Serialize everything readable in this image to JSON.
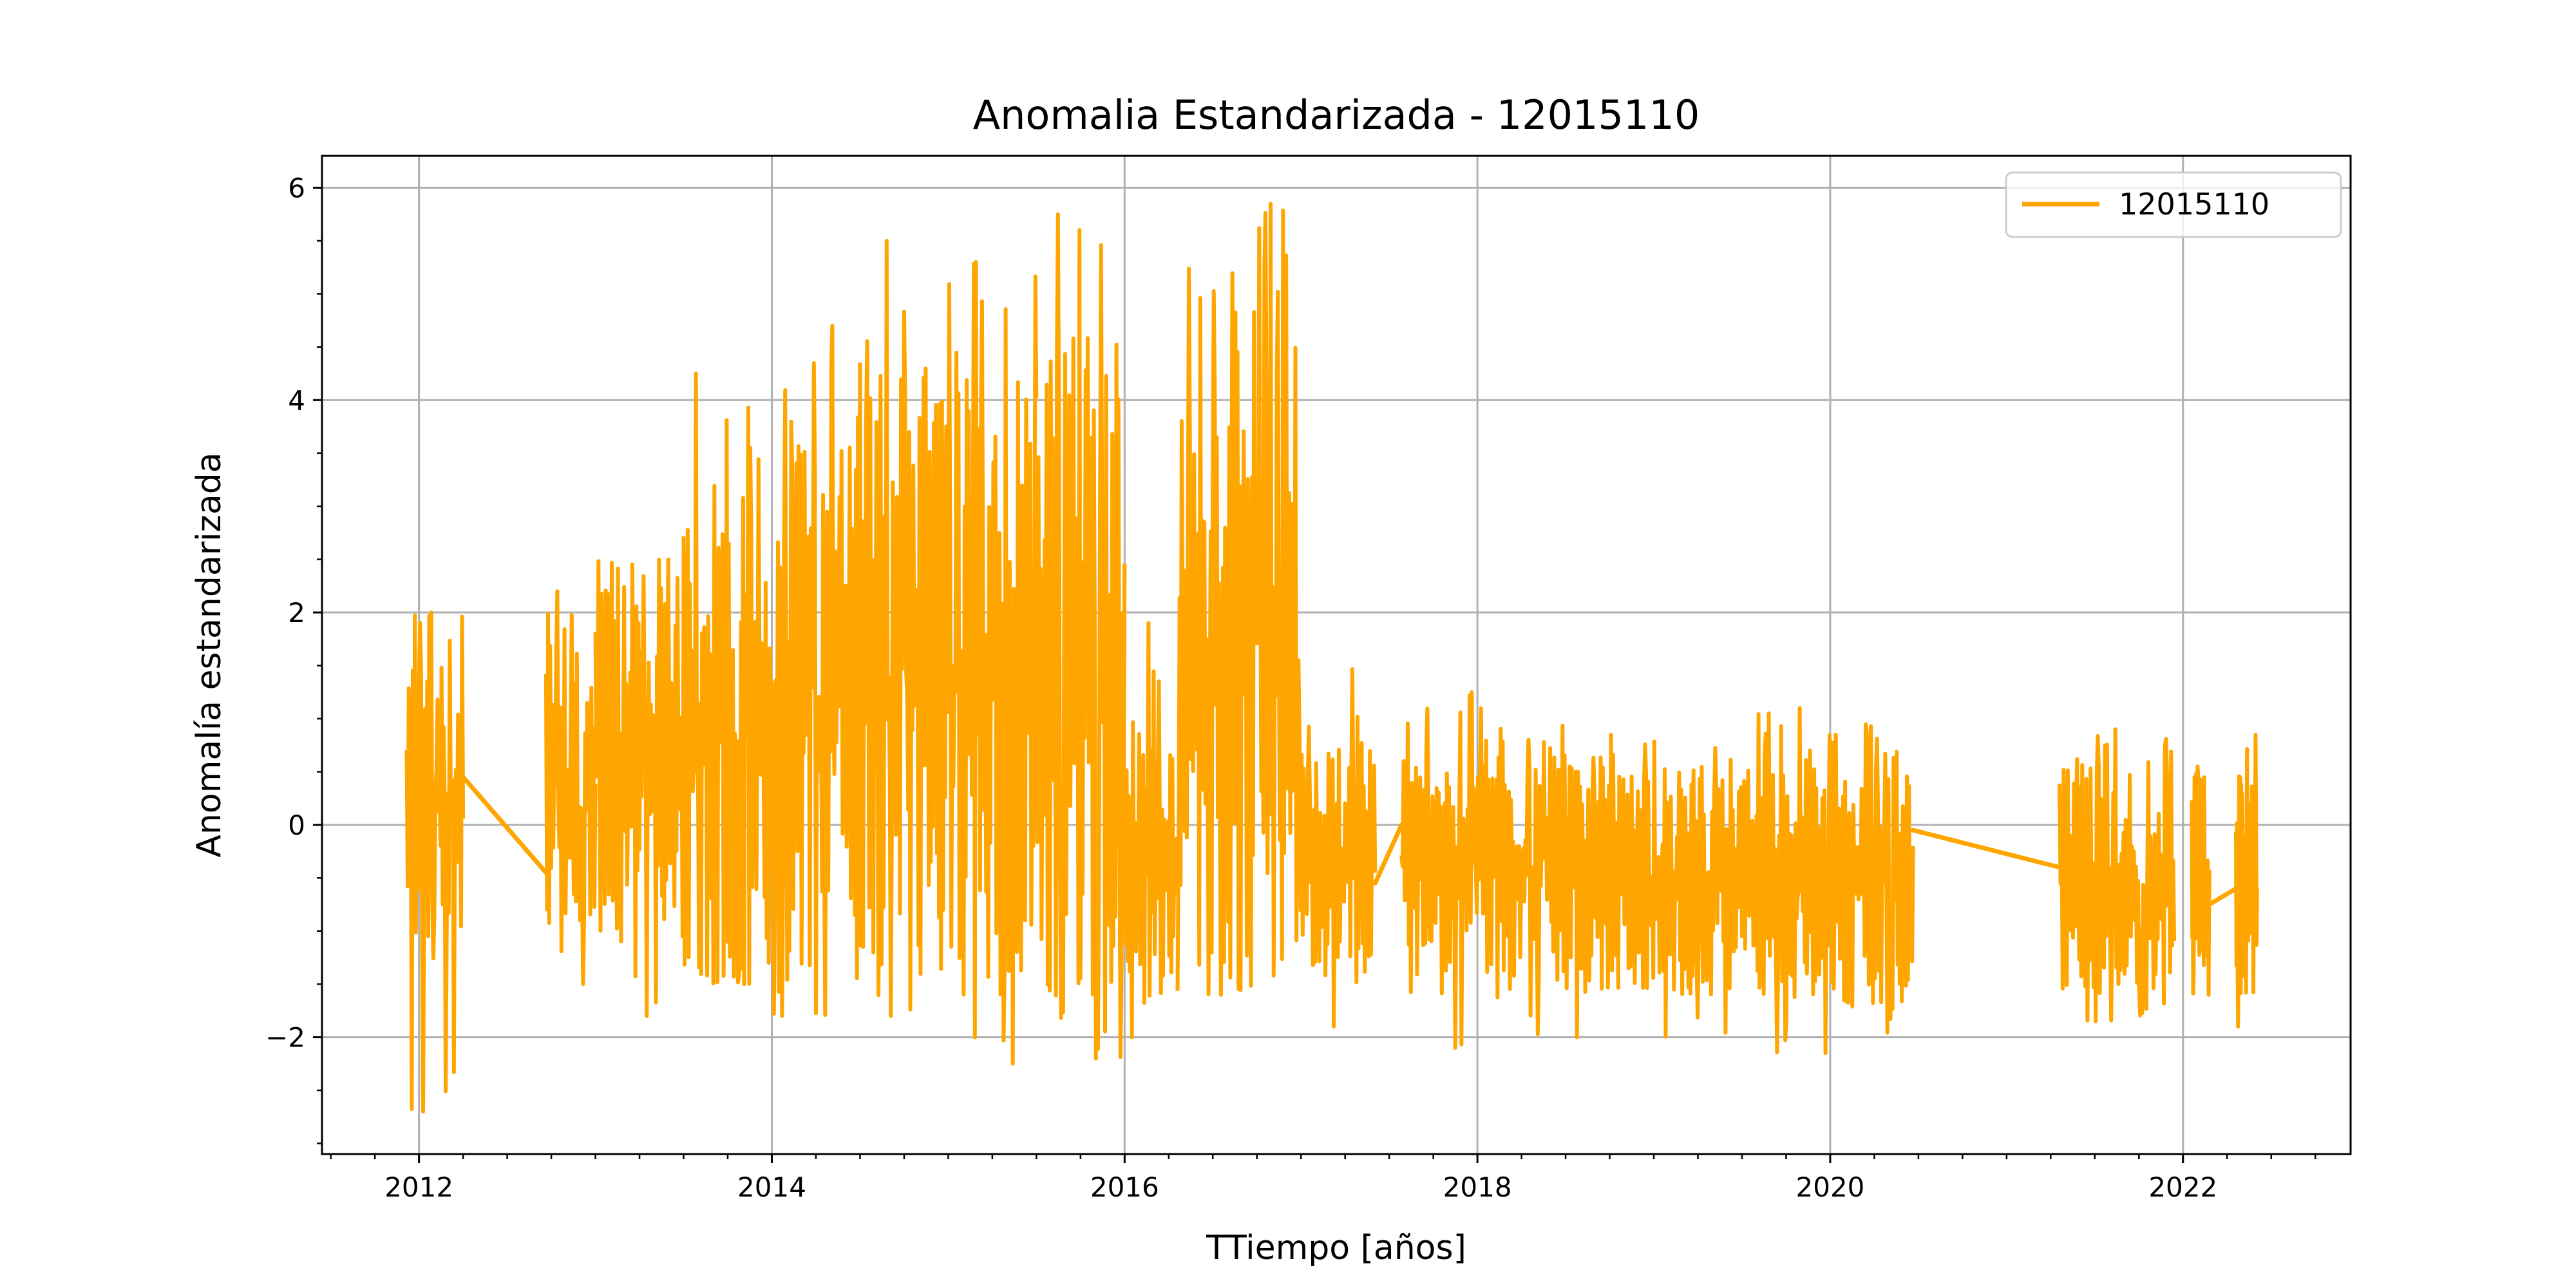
{
  "chart_data": {
    "type": "line",
    "title": "Anomalia Estandarizada - 12015110",
    "xlabel": "TTiempo [años]",
    "ylabel": "Anomalía estandarizada",
    "xlim": [
      2011.45,
      2022.95
    ],
    "ylim": [
      -3.1,
      6.3
    ],
    "x_ticks": [
      2012,
      2014,
      2016,
      2018,
      2020,
      2022
    ],
    "x_tick_labels": [
      "2012",
      "2014",
      "2016",
      "2018",
      "2020",
      "2022"
    ],
    "y_ticks": [
      -2,
      0,
      2,
      4,
      6
    ],
    "y_tick_labels": [
      "−2",
      "0",
      "2",
      "4",
      "6"
    ],
    "grid": true,
    "legend": {
      "position": "top-right",
      "entries": [
        "12015110"
      ]
    },
    "colors": {
      "series": "#ffa500",
      "grid": "#b0b0b0"
    },
    "series": [
      {
        "name": "12015110",
        "segments": [
          {
            "x_start": 2011.93,
            "x_end": 2012.25,
            "low": -1.1,
            "high": 1.9,
            "min": -2.7,
            "max": 2.0
          },
          {
            "x_start": 2012.72,
            "x_end": 2013.0,
            "low": -1.2,
            "high": 1.8,
            "min": -1.5,
            "max": 2.2
          },
          {
            "x_start": 2013.0,
            "x_end": 2013.5,
            "low": -1.3,
            "high": 2.3,
            "min": -1.8,
            "max": 2.5
          },
          {
            "x_start": 2013.5,
            "x_end": 2014.0,
            "low": -1.4,
            "high": 2.8,
            "min": -1.5,
            "max": 4.25
          },
          {
            "x_start": 2014.0,
            "x_end": 2014.5,
            "low": -1.5,
            "high": 3.6,
            "min": -1.8,
            "max": 4.7
          },
          {
            "x_start": 2014.5,
            "x_end": 2015.0,
            "low": -1.6,
            "high": 4.4,
            "min": -1.8,
            "max": 5.5
          },
          {
            "x_start": 2015.0,
            "x_end": 2015.5,
            "low": -1.7,
            "high": 4.5,
            "min": -2.25,
            "max": 5.3
          },
          {
            "x_start": 2015.5,
            "x_end": 2016.0,
            "low": -1.7,
            "high": 4.8,
            "min": -2.2,
            "max": 5.75
          },
          {
            "x_start": 2016.0,
            "x_end": 2016.3,
            "low": -1.6,
            "high": 1.0,
            "min": -2.0,
            "max": 1.9
          },
          {
            "x_start": 2016.3,
            "x_end": 2016.98,
            "low": -1.5,
            "high": 4.8,
            "min": -1.6,
            "max": 5.85
          },
          {
            "x_start": 2016.98,
            "x_end": 2017.42,
            "low": -1.5,
            "high": 0.8,
            "min": -2.3,
            "max": 1.55
          },
          {
            "x_start": 2017.57,
            "x_end": 2018.5,
            "low": -1.6,
            "high": 0.8,
            "min": -2.1,
            "max": 1.25
          },
          {
            "x_start": 2018.5,
            "x_end": 2019.5,
            "low": -1.6,
            "high": 0.55,
            "min": -2.0,
            "max": 0.85
          },
          {
            "x_start": 2019.5,
            "x_end": 2020.47,
            "low": -1.7,
            "high": 0.55,
            "min": -2.15,
            "max": 1.1
          },
          {
            "x_start": 2021.3,
            "x_end": 2021.95,
            "low": -1.55,
            "high": 0.6,
            "min": -1.85,
            "max": 0.9
          },
          {
            "x_start": 2022.05,
            "x_end": 2022.15,
            "low": -1.4,
            "high": 0.4,
            "min": -1.6,
            "max": 0.55
          },
          {
            "x_start": 2022.3,
            "x_end": 2022.42,
            "low": -1.6,
            "high": 0.6,
            "min": -1.9,
            "max": 0.85
          }
        ],
        "connectors": [
          [
            2012.25,
            0.45,
            2012.72,
            -0.45
          ],
          [
            2017.42,
            -0.55,
            2017.57,
            0.0
          ],
          [
            2020.47,
            -0.05,
            2021.3,
            -0.4
          ],
          [
            2022.15,
            -0.75,
            2022.3,
            -0.6
          ]
        ]
      }
    ]
  }
}
